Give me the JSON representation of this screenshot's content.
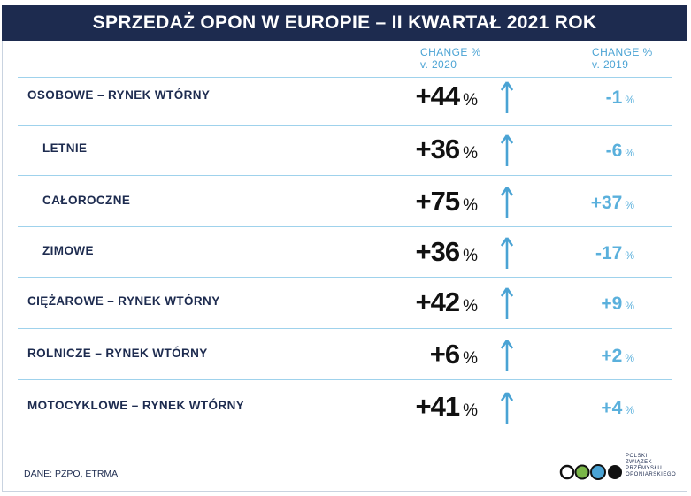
{
  "header": {
    "title": "SPRZEDAŻ OPON W EUROPIE – II KWARTAŁ 2021 ROK"
  },
  "columns": [
    {
      "lines": [
        "CHANGE %",
        "v. 2020"
      ]
    },
    {
      "lines": [
        "CHANGE %",
        "v. 2019"
      ]
    }
  ],
  "unit": "%",
  "rows": [
    {
      "label": "OSOBOWE – RYNEK WTÓRNY",
      "indent": false,
      "change_2020": "+44",
      "change_2019": "-1"
    },
    {
      "label": "LETNIE",
      "indent": true,
      "change_2020": "+36",
      "change_2019": "-6"
    },
    {
      "label": "CAŁOROCZNE",
      "indent": true,
      "change_2020": "+75",
      "change_2019": "+37"
    },
    {
      "label": "ZIMOWE",
      "indent": true,
      "change_2020": "+36",
      "change_2019": "-17"
    },
    {
      "label": "CIĘŻAROWE – RYNEK WTÓRNY",
      "indent": false,
      "change_2020": "+42",
      "change_2019": "+9"
    },
    {
      "label": "ROLNICZE – RYNEK WTÓRNY",
      "indent": false,
      "change_2020": "+6",
      "change_2019": "+2"
    },
    {
      "label": "MOTOCYKLOWE – RYNEK WTÓRNY",
      "indent": false,
      "change_2020": "+41",
      "change_2019": "+4"
    }
  ],
  "footer": {
    "source": "DANE: PZPO, ETRMA",
    "logo_lines": [
      "POLSKI",
      "ZWIĄZEK",
      "PRZEMYSŁU",
      "OPONIARSKIEGO"
    ]
  }
}
